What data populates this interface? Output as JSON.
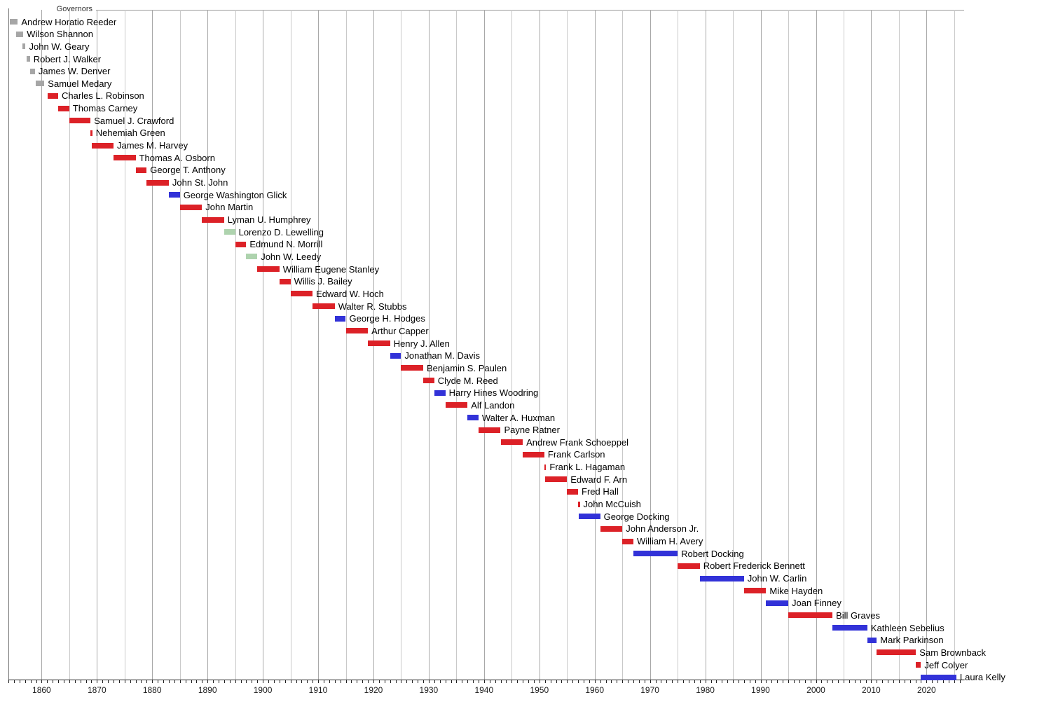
{
  "page": {
    "background": "#ffffff"
  },
  "chart_data": {
    "type": "bar",
    "subtype": "timeline-gantt",
    "title": "Governors",
    "xlabel": "",
    "ylabel": "",
    "x_domain": [
      1854,
      2026.8
    ],
    "x_tick_years": [
      1860,
      1870,
      1880,
      1890,
      1900,
      1910,
      1920,
      1930,
      1940,
      1950,
      1960,
      1970,
      1980,
      1990,
      2000,
      2010,
      2020
    ],
    "x_tick_labels": [
      "1860",
      "1870",
      "1880",
      "1890",
      "1900",
      "1910",
      "1920",
      "1930",
      "1940",
      "1950",
      "1960",
      "1970",
      "1980",
      "1990",
      "2000",
      "2010",
      "2020"
    ],
    "minor_tick_step_years": 1,
    "gridline_step_years": 5,
    "grid": true,
    "legend_position": "none",
    "party_colors": {
      "territorial": "#a6a6a6",
      "republican": "#dc2127",
      "democratic": "#3232d8",
      "populist": "#aed3ae"
    },
    "rows": [
      {
        "name": "Andrew Horatio Reeder",
        "start": 1854.2,
        "end": 1855.7,
        "party": "territorial"
      },
      {
        "name": "Wilson Shannon",
        "start": 1855.4,
        "end": 1856.7,
        "party": "territorial"
      },
      {
        "name": "John W. Geary",
        "start": 1856.5,
        "end": 1857.1,
        "party": "territorial"
      },
      {
        "name": "Robert J. Walker",
        "start": 1857.3,
        "end": 1857.9,
        "party": "territorial"
      },
      {
        "name": "James W. Denver",
        "start": 1857.95,
        "end": 1858.8,
        "party": "territorial"
      },
      {
        "name": "Samuel Medary",
        "start": 1858.9,
        "end": 1860.5,
        "party": "territorial"
      },
      {
        "name": "Charles L. Robinson",
        "start": 1861.1,
        "end": 1863.0,
        "party": "republican"
      },
      {
        "name": "Thomas Carney",
        "start": 1863.0,
        "end": 1865.0,
        "party": "republican"
      },
      {
        "name": "Samuel J. Crawford",
        "start": 1865.0,
        "end": 1868.85,
        "party": "republican"
      },
      {
        "name": "Nehemiah Green",
        "start": 1868.85,
        "end": 1869.05,
        "party": "republican"
      },
      {
        "name": "James M. Harvey",
        "start": 1869.05,
        "end": 1873.0,
        "party": "republican"
      },
      {
        "name": "Thomas A. Osborn",
        "start": 1873.0,
        "end": 1877.0,
        "party": "republican"
      },
      {
        "name": "George T. Anthony",
        "start": 1877.0,
        "end": 1879.0,
        "party": "republican"
      },
      {
        "name": "John St. John",
        "start": 1879.0,
        "end": 1883.0,
        "party": "republican"
      },
      {
        "name": "George Washington Glick",
        "start": 1883.0,
        "end": 1885.0,
        "party": "democratic"
      },
      {
        "name": "John Martin",
        "start": 1885.0,
        "end": 1889.0,
        "party": "republican"
      },
      {
        "name": "Lyman U. Humphrey",
        "start": 1889.0,
        "end": 1893.0,
        "party": "republican"
      },
      {
        "name": "Lorenzo D. Lewelling",
        "start": 1893.0,
        "end": 1895.0,
        "party": "populist"
      },
      {
        "name": "Edmund N. Morrill",
        "start": 1895.0,
        "end": 1897.0,
        "party": "republican"
      },
      {
        "name": "John W. Leedy",
        "start": 1897.0,
        "end": 1899.0,
        "party": "populist"
      },
      {
        "name": "William Eugene Stanley",
        "start": 1899.0,
        "end": 1903.0,
        "party": "republican"
      },
      {
        "name": "Willis J. Bailey",
        "start": 1903.0,
        "end": 1905.0,
        "party": "republican"
      },
      {
        "name": "Edward W. Hoch",
        "start": 1905.0,
        "end": 1909.0,
        "party": "republican"
      },
      {
        "name": "Walter R. Stubbs",
        "start": 1909.0,
        "end": 1913.0,
        "party": "republican"
      },
      {
        "name": "George H. Hodges",
        "start": 1913.0,
        "end": 1915.0,
        "party": "democratic"
      },
      {
        "name": "Arthur Capper",
        "start": 1915.0,
        "end": 1919.0,
        "party": "republican"
      },
      {
        "name": "Henry J. Allen",
        "start": 1919.0,
        "end": 1923.0,
        "party": "republican"
      },
      {
        "name": "Jonathan M. Davis",
        "start": 1923.0,
        "end": 1925.0,
        "party": "democratic"
      },
      {
        "name": "Benjamin S. Paulen",
        "start": 1925.0,
        "end": 1929.0,
        "party": "republican"
      },
      {
        "name": "Clyde M. Reed",
        "start": 1929.0,
        "end": 1931.0,
        "party": "republican"
      },
      {
        "name": "Harry Hines Woodring",
        "start": 1931.0,
        "end": 1933.0,
        "party": "democratic"
      },
      {
        "name": "Alf Landon",
        "start": 1933.0,
        "end": 1937.0,
        "party": "republican"
      },
      {
        "name": "Walter A. Huxman",
        "start": 1937.0,
        "end": 1939.0,
        "party": "democratic"
      },
      {
        "name": "Payne Ratner",
        "start": 1939.0,
        "end": 1943.0,
        "party": "republican"
      },
      {
        "name": "Andrew Frank Schoeppel",
        "start": 1943.0,
        "end": 1947.0,
        "party": "republican"
      },
      {
        "name": "Frank Carlson",
        "start": 1947.0,
        "end": 1950.9,
        "party": "republican"
      },
      {
        "name": "Frank L. Hagaman",
        "start": 1950.9,
        "end": 1951.05,
        "party": "republican"
      },
      {
        "name": "Edward F. Arn",
        "start": 1951.05,
        "end": 1955.0,
        "party": "republican"
      },
      {
        "name": "Fred Hall",
        "start": 1955.0,
        "end": 1957.0,
        "party": "republican"
      },
      {
        "name": "John McCuish",
        "start": 1957.0,
        "end": 1957.1,
        "party": "republican"
      },
      {
        "name": "George Docking",
        "start": 1957.1,
        "end": 1961.0,
        "party": "democratic"
      },
      {
        "name": "John Anderson Jr.",
        "start": 1961.0,
        "end": 1965.0,
        "party": "republican"
      },
      {
        "name": "William H. Avery",
        "start": 1965.0,
        "end": 1967.0,
        "party": "republican"
      },
      {
        "name": "Robert Docking",
        "start": 1967.0,
        "end": 1975.0,
        "party": "democratic"
      },
      {
        "name": "Robert Frederick Bennett",
        "start": 1975.0,
        "end": 1979.0,
        "party": "republican"
      },
      {
        "name": "John W. Carlin",
        "start": 1979.0,
        "end": 1987.0,
        "party": "democratic"
      },
      {
        "name": "Mike Hayden",
        "start": 1987.0,
        "end": 1991.0,
        "party": "republican"
      },
      {
        "name": "Joan Finney",
        "start": 1991.0,
        "end": 1995.0,
        "party": "democratic"
      },
      {
        "name": "Bill Graves",
        "start": 1995.0,
        "end": 2003.0,
        "party": "republican"
      },
      {
        "name": "Kathleen Sebelius",
        "start": 2003.0,
        "end": 2009.3,
        "party": "democratic"
      },
      {
        "name": "Mark Parkinson",
        "start": 2009.3,
        "end": 2011.0,
        "party": "democratic"
      },
      {
        "name": "Sam Brownback",
        "start": 2011.0,
        "end": 2018.1,
        "party": "republican"
      },
      {
        "name": "Jeff Colyer",
        "start": 2018.1,
        "end": 2019.0,
        "party": "republican"
      },
      {
        "name": "Laura Kelly",
        "start": 2019.0,
        "end": 2025.4,
        "party": "democratic"
      }
    ]
  },
  "layout_colors": {
    "gridline_major": "#a8a8a8",
    "gridline_minor": "#c9c9c9",
    "axis": "#222222",
    "title_line": "#9a9a9a",
    "label_text": "#000000"
  }
}
